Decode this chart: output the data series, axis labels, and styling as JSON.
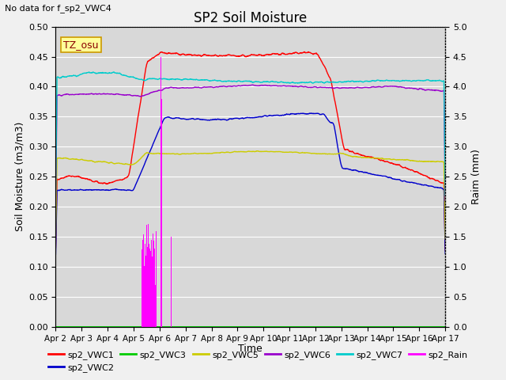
{
  "title": "SP2 Soil Moisture",
  "subtitle": "No data for f_sp2_VWC4",
  "xlabel": "Time",
  "ylabel_left": "Soil Moisture (m3/m3)",
  "ylabel_right": "Raim (mm)",
  "ylim_left": [
    0.0,
    0.5
  ],
  "ylim_right": [
    0.0,
    5.0
  ],
  "yticks_left": [
    0.0,
    0.05,
    0.1,
    0.15,
    0.2,
    0.25,
    0.3,
    0.35,
    0.4,
    0.45,
    0.5
  ],
  "yticks_right": [
    0.0,
    0.5,
    1.0,
    1.5,
    2.0,
    2.5,
    3.0,
    3.5,
    4.0,
    4.5,
    5.0
  ],
  "xtick_labels": [
    "Apr 2",
    "Apr 3",
    "Apr 4",
    "Apr 5",
    "Apr 6",
    "Apr 7",
    "Apr 8",
    "Apr 9",
    "Apr 10",
    "Apr 11",
    "Apr 12",
    "Apr 13",
    "Apr 14",
    "Apr 15",
    "Apr 16",
    "Apr 17"
  ],
  "background_color": "#d8d8d8",
  "fig_color": "#f0f0f0",
  "grid_color": "#ffffff",
  "colors": {
    "VWC1": "#ff0000",
    "VWC2": "#0000cc",
    "VWC3": "#00cc00",
    "VWC5": "#cccc00",
    "VWC6": "#9900cc",
    "VWC7": "#00cccc",
    "Rain": "#ff00ff"
  },
  "legend_box_color": "#ffff99",
  "legend_box_text": "TZ_osu",
  "legend_box_border": "#cc9900"
}
